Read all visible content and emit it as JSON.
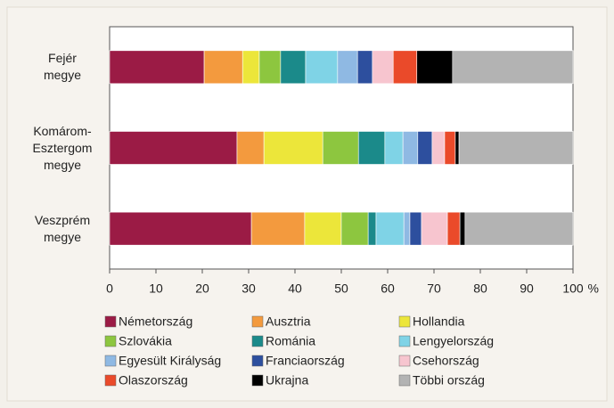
{
  "chart_data": {
    "type": "stacked_barh",
    "categories": [
      "Fejér\nmegye",
      "Komárom-\nEsztergom\nmegye",
      "Veszprém\nmegye"
    ],
    "xlabel": "%",
    "xlim": [
      0,
      100
    ],
    "xticks": [
      0,
      10,
      20,
      30,
      40,
      50,
      60,
      70,
      80,
      90,
      100
    ],
    "series": [
      {
        "name": "Németország",
        "color": "#9b1b45",
        "values": [
          20.4,
          27.5,
          30.6
        ]
      },
      {
        "name": "Ausztria",
        "color": "#f39a3e",
        "values": [
          8.3,
          5.8,
          11.5
        ]
      },
      {
        "name": "Hollandia",
        "color": "#ece63a",
        "values": [
          3.6,
          12.7,
          7.9
        ]
      },
      {
        "name": "Szlovákia",
        "color": "#8dc63f",
        "values": [
          4.6,
          7.7,
          5.8
        ]
      },
      {
        "name": "Románia",
        "color": "#1b8a8a",
        "values": [
          5.4,
          5.7,
          1.7
        ]
      },
      {
        "name": "Lengyelország",
        "color": "#7fd3e6",
        "values": [
          6.9,
          3.9,
          6.0
        ]
      },
      {
        "name": "Egyesült Királyság",
        "color": "#8fb9e3",
        "values": [
          4.3,
          3.2,
          1.3
        ]
      },
      {
        "name": "Franciaország",
        "color": "#2d4f9e",
        "values": [
          3.2,
          3.1,
          2.5
        ]
      },
      {
        "name": "Csehország",
        "color": "#f7c5cf",
        "values": [
          4.5,
          2.7,
          5.6
        ]
      },
      {
        "name": "Olaszország",
        "color": "#ea4a2a",
        "values": [
          5.1,
          2.3,
          2.7
        ]
      },
      {
        "name": "Ukrajna",
        "color": "#000000",
        "values": [
          7.7,
          0.8,
          1.1
        ]
      },
      {
        "name": "Többi ország",
        "color": "#b3b3b3",
        "values": [
          26.0,
          24.6,
          23.3
        ]
      }
    ]
  }
}
